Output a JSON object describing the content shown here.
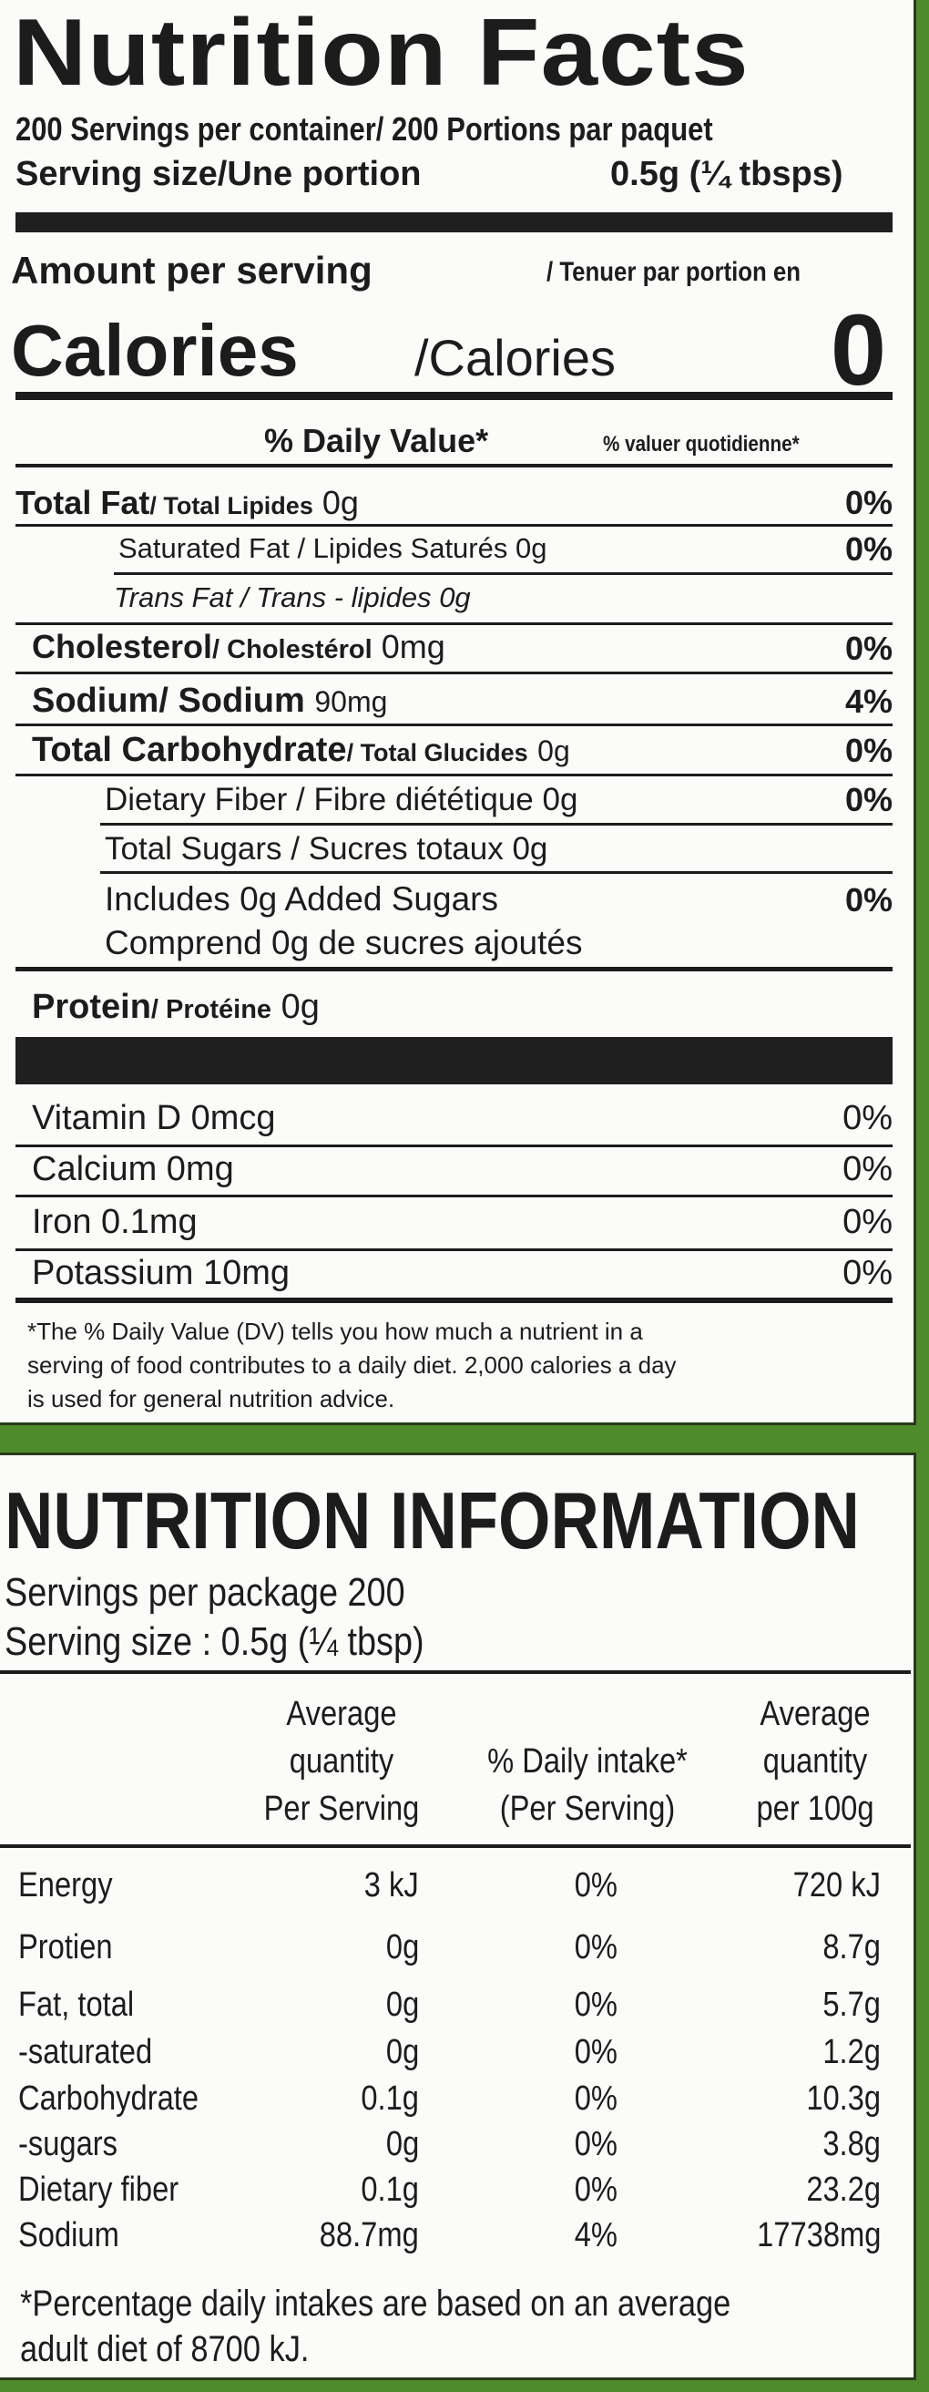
{
  "colors": {
    "background_green": "#4f8a2b",
    "panel": "#fbfbfa",
    "ink": "#1c1c1c"
  },
  "facts": {
    "title": "Nutrition Facts",
    "servings_per_container": "200 Servings per container/ 200 Portions par paquet",
    "serving_size_label": "Serving size/Une portion",
    "serving_size_value": "0.5g (¼ tbsps)",
    "amount_per_serving": "Amount per serving",
    "amount_per_serving_fr": "/ Tenuer par portion en",
    "calories_label": "Calories",
    "calories_label_fr": "/Calories",
    "calories_value": "0",
    "daily_value_header": "% Daily Value*",
    "daily_value_header_fr": "% valuer quotidienne*",
    "nutrients": [
      {
        "name": "Total Fat",
        "name_fr": "/ Total Lipides",
        "amount": "0g",
        "dv": "0%"
      },
      {
        "name": "Saturated Fat / Lipides Saturés",
        "amount": "0g",
        "dv": "0%"
      },
      {
        "name": "Trans Fat / Trans - lipides",
        "amount": "0g",
        "dv": ""
      },
      {
        "name": "Cholesterol",
        "name_fr": "/ Cholestérol",
        "amount": "0mg",
        "dv": "0%"
      },
      {
        "name": "Sodium",
        "name_fr": "/ Sodium",
        "amount": "90mg",
        "dv": "4%"
      },
      {
        "name": "Total Carbohydrate",
        "name_fr": "/ Total Glucides",
        "amount": "0g",
        "dv": "0%"
      },
      {
        "name": "Dietary Fiber / Fibre diététique",
        "amount": "0g",
        "dv": "0%"
      },
      {
        "name": "Total Sugars / Sucres totaux",
        "amount": "0g",
        "dv": ""
      },
      {
        "name": "Includes 0g Added Sugars",
        "name_fr": "Comprend 0g de sucres ajoutés",
        "dv": "0%"
      },
      {
        "name": "Protein",
        "name_fr": "/ Protéine",
        "amount": "0g"
      }
    ],
    "vitamins": [
      {
        "name": "Vitamin D 0mcg",
        "dv": "0%"
      },
      {
        "name": "Calcium 0mg",
        "dv": "0%"
      },
      {
        "name": "Iron 0.1mg",
        "dv": "0%"
      },
      {
        "name": "Potassium 10mg",
        "dv": "0%"
      }
    ],
    "footnote": [
      "*The % Daily Value (DV) tells you how much a nutrient in a",
      "serving of food contributes to a daily diet. 2,000 calories a day",
      "is used for general nutrition advice."
    ]
  },
  "info": {
    "title": "NUTRITION INFORMATION",
    "servings_per_package": "Servings per package 200",
    "serving_size": "Serving size : 0.5g (¼ tbsp)",
    "headers": [
      [
        "Average",
        "quantity",
        "Per Serving"
      ],
      [
        "% Daily intake*",
        "(Per Serving)"
      ],
      [
        "Average",
        "quantity",
        "per 100g"
      ]
    ],
    "rows": [
      [
        "Energy",
        "3 kJ",
        "0%",
        "720 kJ"
      ],
      [
        "Protien",
        "0g",
        "0%",
        "8.7g"
      ],
      [
        "Fat, total",
        "0g",
        "0%",
        "5.7g"
      ],
      [
        "-saturated",
        "0g",
        "0%",
        "1.2g"
      ],
      [
        "Carbohydrate",
        "0.1g",
        "0%",
        "10.3g"
      ],
      [
        "-sugars",
        "0g",
        "0%",
        "3.8g"
      ],
      [
        "Dietary fiber",
        "0.1g",
        "0%",
        "23.2g"
      ],
      [
        "Sodium",
        "88.7mg",
        "4%",
        "17738mg"
      ]
    ],
    "footnote": [
      "*Percentage daily intakes are based on an average",
      "adult diet of 8700  kJ."
    ]
  }
}
